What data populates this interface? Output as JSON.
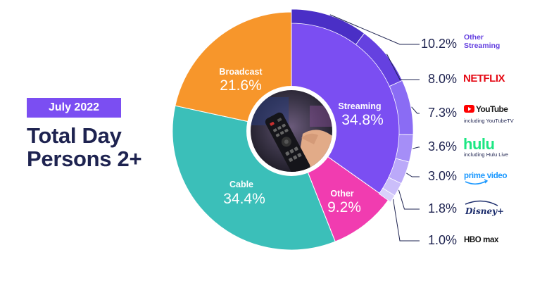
{
  "header": {
    "badge": "July 2022",
    "title_line1": "Total Day",
    "title_line2": "Persons 2+"
  },
  "colors": {
    "streaming": "#7b4ef2",
    "broadcast": "#f7962b",
    "cable": "#3bbfb9",
    "other": "#f13cb0",
    "streaming_ring": [
      "#4a2fc6",
      "#6541e0",
      "#8a6cf4",
      "#a58ef7",
      "#bba9f9",
      "#cbbefa",
      "#d9d0fb"
    ],
    "text_dark": "#1e2350",
    "netflix_red": "#e50914",
    "youtube_red": "#ff0000",
    "hulu_green": "#1ce783",
    "prime_blue": "#1a98ff",
    "disney_blue": "#1a2b6b"
  },
  "chart_data": {
    "type": "pie",
    "categories": [
      "Streaming",
      "Other",
      "Cable",
      "Broadcast"
    ],
    "values": [
      34.8,
      9.2,
      34.4,
      21.6
    ],
    "value_labels": [
      "34.8%",
      "9.2%",
      "34.4%",
      "21.6%"
    ],
    "streaming_breakdown": {
      "services": [
        "Other Streaming",
        "NETFLIX",
        "YouTube",
        "hulu",
        "prime video",
        "Disney+",
        "HBO max"
      ],
      "values": [
        10.2,
        8.0,
        7.3,
        3.6,
        3.0,
        1.8,
        1.0
      ],
      "value_labels": [
        "10.2%",
        "8.0%",
        "7.3%",
        "3.6%",
        "3.0%",
        "1.8%",
        "1.0%"
      ],
      "sublabels": [
        "",
        "",
        "including YouTubeTV",
        "including Hulu Live",
        "",
        "",
        ""
      ]
    }
  },
  "logos": {
    "other_streaming_line1": "Other",
    "other_streaming_line2": "Streaming",
    "netflix": "NETFLIX",
    "youtube": "YouTube",
    "youtube_sub": "including YouTubeTV",
    "hulu": "hulu",
    "hulu_sub": "including Hulu Live",
    "prime": "prime video",
    "disney": "Disney+",
    "hbo": "HBO max"
  }
}
